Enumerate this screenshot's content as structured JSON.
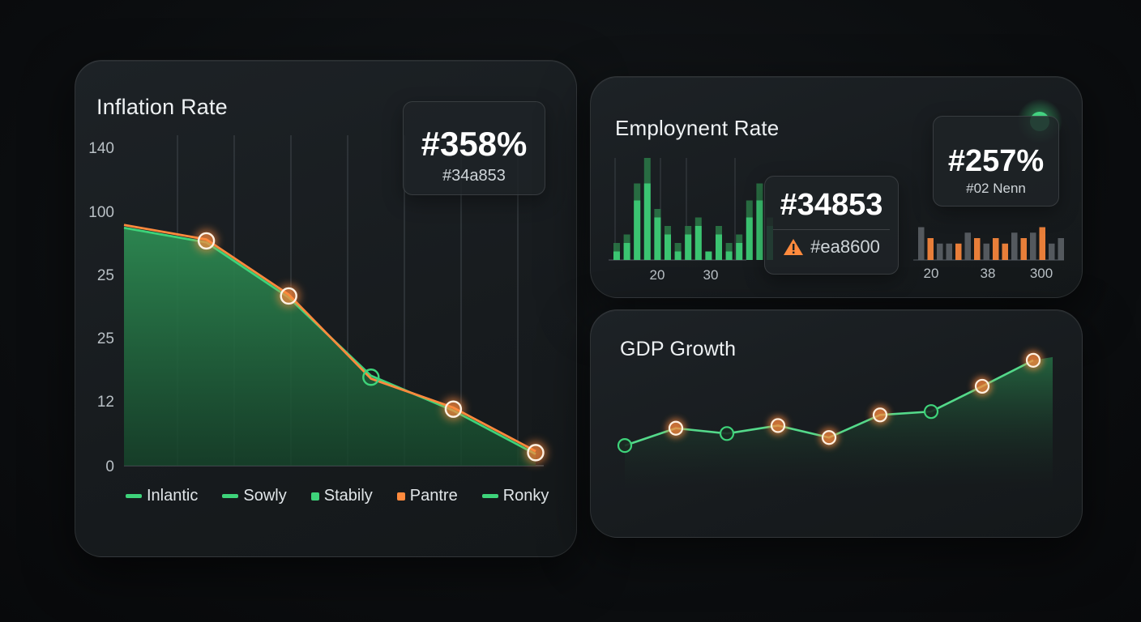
{
  "colors": {
    "green": "#3ed37a",
    "orange": "#ff8a3d",
    "gray": "#5b6166",
    "background": "#0b0d0f"
  },
  "inflation": {
    "title": "Inflation Rate",
    "stat_value": "#358%",
    "stat_sub": "#34a853",
    "legend": [
      {
        "label": "Inlantic",
        "color": "#3ed37a",
        "shape": "line"
      },
      {
        "label": "Sowly",
        "color": "#3ed37a",
        "shape": "line"
      },
      {
        "label": "Stabily",
        "color": "#3ed37a",
        "shape": "square"
      },
      {
        "label": "Pantre",
        "color": "#ff8a3d",
        "shape": "square"
      },
      {
        "label": "Ronky",
        "color": "#3ed37a",
        "shape": "line"
      }
    ]
  },
  "employment": {
    "title": "Employnent Rate",
    "stat_value": "#34853",
    "warning_text": "#ea8600",
    "side_value": "#257%",
    "side_sub": "#02 Nenn"
  },
  "gdp": {
    "title": "GDP Growth"
  },
  "chart_data": [
    {
      "type": "area",
      "title": "Inflation Rate",
      "y_tick_labels": [
        "140",
        "100",
        "25",
        "25",
        "12",
        "0"
      ],
      "series": [
        {
          "color": "#3ed37a",
          "values": [
            72,
            67,
            48,
            21,
            9,
            -6
          ]
        },
        {
          "color": "#ff8a3d",
          "values": [
            73,
            68,
            49,
            20,
            10,
            -5
          ]
        }
      ],
      "markers": [
        {
          "index": 1,
          "color": "#ff8a3d"
        },
        {
          "index": 2,
          "color": "#ff8a3d"
        },
        {
          "index": 3,
          "color": "#3ed37a"
        },
        {
          "index": 4,
          "color": "#ff8a3d"
        },
        {
          "index": 5,
          "color": "#ff8a3d"
        }
      ],
      "grid": true
    },
    {
      "type": "bar",
      "title": "Employnent Rate",
      "x_tick_labels": [
        "20",
        "30"
      ],
      "values": [
        2,
        3,
        9,
        12,
        6,
        4,
        2,
        4,
        5,
        1,
        4,
        2,
        3,
        7,
        9,
        5
      ],
      "values_secondary": [
        1,
        2,
        7,
        9,
        5,
        3,
        1,
        3,
        4,
        1,
        3,
        1,
        2,
        5,
        7,
        4
      ],
      "color": "#3ed37a"
    },
    {
      "type": "bar",
      "title": "",
      "x_tick_labels": [
        "20",
        "38",
        "300"
      ],
      "values": [
        6,
        4,
        3,
        3,
        3,
        5,
        4,
        3,
        4,
        3,
        5,
        4,
        5,
        6,
        3,
        4
      ],
      "colors": [
        "#5b6166",
        "#ff8a3d",
        "#5b6166",
        "#5b6166",
        "#ff8a3d",
        "#5b6166",
        "#ff8a3d",
        "#5b6166",
        "#ff8a3d",
        "#ff8a3d",
        "#5b6166",
        "#ff8a3d",
        "#5b6166",
        "#ff8a3d",
        "#5b6166",
        "#5b6166"
      ]
    },
    {
      "type": "line",
      "title": "GDP Growth",
      "values": [
        2,
        4.6,
        3.8,
        5,
        3.2,
        6.6,
        7.1,
        10.9,
        14.8
      ],
      "markers": [
        {
          "index": 0,
          "color": "#3ed37a"
        },
        {
          "index": 1,
          "color": "#ff8a3d"
        },
        {
          "index": 2,
          "color": "#3ed37a"
        },
        {
          "index": 3,
          "color": "#ff8a3d"
        },
        {
          "index": 4,
          "color": "#ff8a3d"
        },
        {
          "index": 5,
          "color": "#ff8a3d"
        },
        {
          "index": 6,
          "color": "#3ed37a"
        },
        {
          "index": 7,
          "color": "#ff8a3d"
        },
        {
          "index": 8,
          "color": "#ff8a3d"
        }
      ]
    }
  ]
}
